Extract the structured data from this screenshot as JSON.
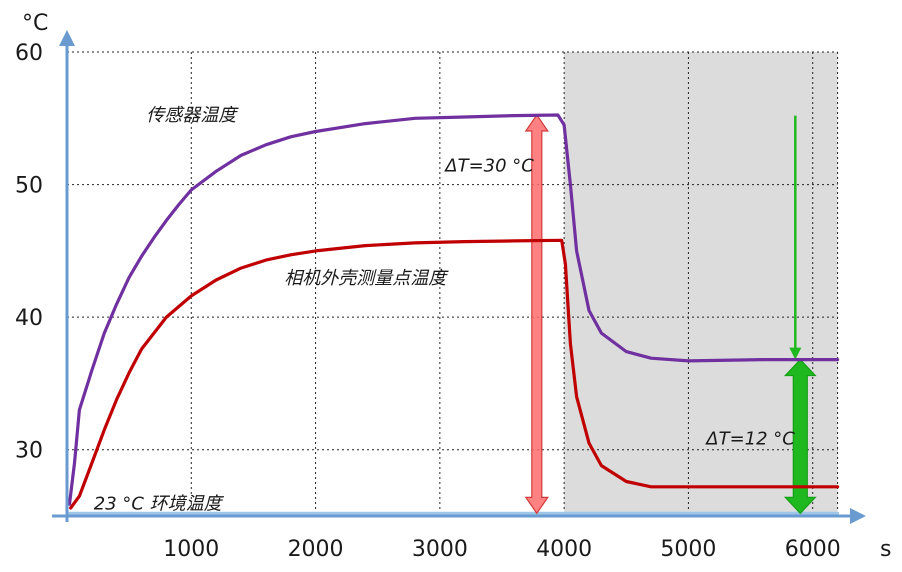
{
  "chart_data": {
    "type": "line",
    "x_unit": "s",
    "y_unit": "°C",
    "xlim": [
      0,
      6300
    ],
    "ylim": [
      25,
      60
    ],
    "x_ticks": [
      1000,
      2000,
      3000,
      4000,
      5000,
      6000
    ],
    "y_ticks": [
      30,
      40,
      50,
      60
    ],
    "grid": true,
    "shaded_region": {
      "x_start": 4000,
      "x_end": 6200,
      "color": "#dcdcdc"
    },
    "series": [
      {
        "name": "传感器温度",
        "color": "#7030a0",
        "points": [
          [
            20,
            25.9
          ],
          [
            60,
            29
          ],
          [
            100,
            33
          ],
          [
            200,
            36
          ],
          [
            300,
            38.8
          ],
          [
            400,
            41
          ],
          [
            500,
            43
          ],
          [
            600,
            44.6
          ],
          [
            700,
            46
          ],
          [
            800,
            47.3
          ],
          [
            900,
            48.5
          ],
          [
            1000,
            49.6
          ],
          [
            1100,
            50.3
          ],
          [
            1200,
            51
          ],
          [
            1400,
            52.2
          ],
          [
            1600,
            53
          ],
          [
            1800,
            53.6
          ],
          [
            2000,
            54
          ],
          [
            2400,
            54.6
          ],
          [
            2800,
            55
          ],
          [
            3200,
            55.1
          ],
          [
            3600,
            55.2
          ],
          [
            3950,
            55.25
          ],
          [
            4000,
            54.5
          ],
          [
            4050,
            50
          ],
          [
            4100,
            45
          ],
          [
            4200,
            40.5
          ],
          [
            4300,
            38.8
          ],
          [
            4500,
            37.4
          ],
          [
            4700,
            36.9
          ],
          [
            5000,
            36.7
          ],
          [
            5600,
            36.8
          ],
          [
            6200,
            36.8
          ]
        ]
      },
      {
        "name": "相机外壳测量点温度",
        "color": "#c00000",
        "points": [
          [
            30,
            25.6
          ],
          [
            100,
            26.5
          ],
          [
            200,
            29
          ],
          [
            300,
            31.5
          ],
          [
            400,
            33.8
          ],
          [
            500,
            35.8
          ],
          [
            600,
            37.6
          ],
          [
            800,
            40
          ],
          [
            1000,
            41.6
          ],
          [
            1200,
            42.8
          ],
          [
            1400,
            43.7
          ],
          [
            1600,
            44.3
          ],
          [
            1800,
            44.7
          ],
          [
            2000,
            45
          ],
          [
            2400,
            45.4
          ],
          [
            2800,
            45.6
          ],
          [
            3200,
            45.7
          ],
          [
            3600,
            45.75
          ],
          [
            3980,
            45.8
          ],
          [
            4010,
            44
          ],
          [
            4050,
            38
          ],
          [
            4100,
            34
          ],
          [
            4200,
            30.5
          ],
          [
            4300,
            28.8
          ],
          [
            4500,
            27.6
          ],
          [
            4700,
            27.2
          ],
          [
            5000,
            27.2
          ],
          [
            6200,
            27.2
          ]
        ]
      },
      {
        "name": "23 °C 环境温度",
        "color": "#9ec6e6",
        "points": [
          [
            0,
            25.2
          ],
          [
            6200,
            25.2
          ]
        ]
      }
    ],
    "annotations": [
      {
        "text": "传感器温度",
        "x": 1000,
        "y": 54.8
      },
      {
        "text": "相机外壳测量点温度",
        "x": 2400,
        "y": 42.5
      },
      {
        "text": "23 °C 环境温度",
        "x": 730,
        "y": 25.5
      },
      {
        "text": "ΔT=30 °C",
        "x": 3400,
        "y": 51
      },
      {
        "text": "ΔT=12 °C",
        "x": 5500,
        "y": 30.4
      }
    ],
    "arrows": [
      {
        "kind": "double",
        "x": 3780,
        "y_from": 25.2,
        "y_to": 55.25,
        "color": "#ff6b6b"
      },
      {
        "kind": "double",
        "x": 5900,
        "y_from": 25.2,
        "y_to": 36.8,
        "color": "#1fb81f"
      },
      {
        "kind": "single",
        "x": 5860,
        "y_from": 55.2,
        "y_to": 36.8,
        "color": "#1fb81f"
      }
    ]
  }
}
